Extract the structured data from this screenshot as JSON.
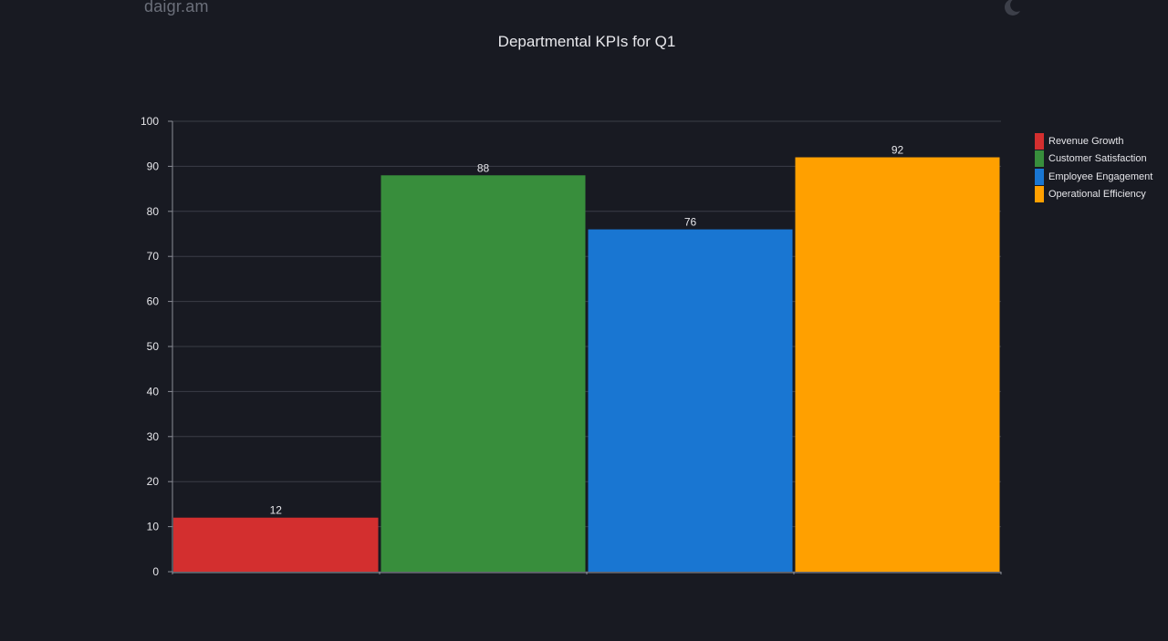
{
  "header": {
    "logo": "daigr.am",
    "theme_icon": "moon-icon"
  },
  "colors": {
    "background": "#181a22",
    "grid": "#3a3d47",
    "axis": "#8a8d96",
    "text": "#e6e6ea"
  },
  "chart_data": {
    "type": "bar",
    "title": "Departmental KPIs for Q1",
    "xlabel": "",
    "ylabel": "",
    "ylim": [
      0,
      100
    ],
    "yticks": [
      0,
      10,
      20,
      30,
      40,
      50,
      60,
      70,
      80,
      90,
      100
    ],
    "grid": true,
    "legend_position": "right",
    "series": [
      {
        "name": "Revenue Growth",
        "value": 12,
        "color": "#d32f2f"
      },
      {
        "name": "Customer Satisfaction",
        "value": 88,
        "color": "#388e3c"
      },
      {
        "name": "Employee Engagement",
        "value": 76,
        "color": "#1976d2"
      },
      {
        "name": "Operational Efficiency",
        "value": 92,
        "color": "#ffa000"
      }
    ]
  }
}
